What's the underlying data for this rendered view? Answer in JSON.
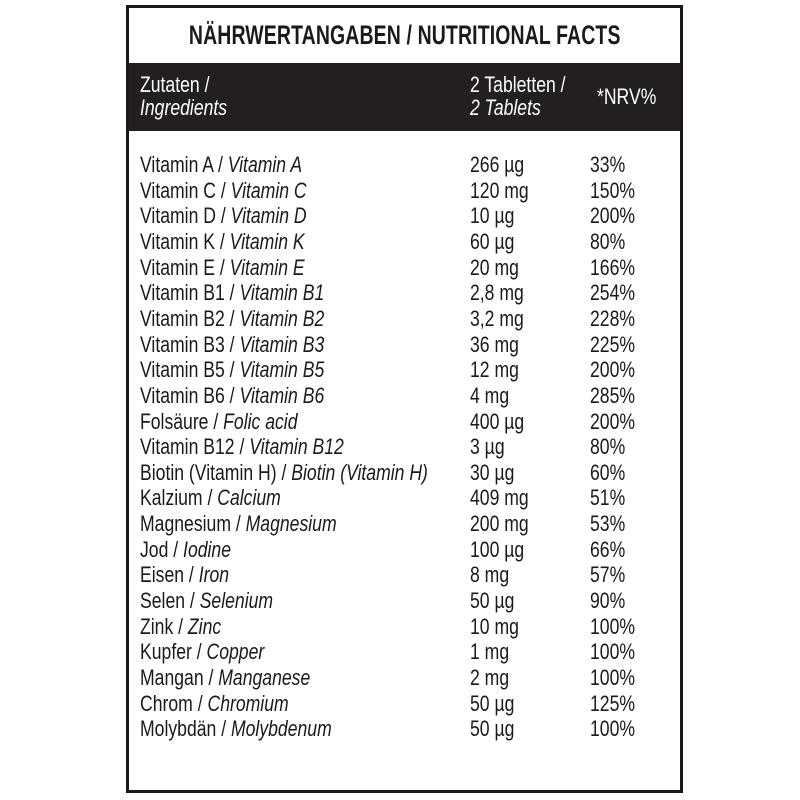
{
  "title": "NÄHRWERTANGABEN / NUTRITIONAL FACTS",
  "header": {
    "ingredients_de": "Zutaten /",
    "ingredients_en": "Ingredients",
    "amount_de": "2 Tabletten /",
    "amount_en": "2 Tablets",
    "nrv": "*NRV%"
  },
  "rows": [
    {
      "de": "Vitamin A / ",
      "en": "Vitamin A",
      "amount": "266 µg",
      "nrv": "33%"
    },
    {
      "de": "Vitamin C /  ",
      "en": "Vitamin C",
      "amount": "120 mg",
      "nrv": "150%"
    },
    {
      "de": "Vitamin D / ",
      "en": "Vitamin D",
      "amount": "10 µg",
      "nrv": "200%"
    },
    {
      "de": "Vitamin K / ",
      "en": "Vitamin K",
      "amount": "60 µg",
      "nrv": "80%"
    },
    {
      "de": "Vitamin E / ",
      "en": "Vitamin E",
      "amount": "20 mg",
      "nrv": "166%"
    },
    {
      "de": "Vitamin B1 / ",
      "en": "Vitamin B1",
      "amount": "2,8 mg",
      "nrv": "254%"
    },
    {
      "de": "Vitamin B2 / ",
      "en": "Vitamin B2",
      "amount": "3,2 mg",
      "nrv": "228%"
    },
    {
      "de": "Vitamin B3 / ",
      "en": "Vitamin B3",
      "amount": "36 mg",
      "nrv": "225%"
    },
    {
      "de": "Vitamin B5 / ",
      "en": "Vitamin B5",
      "amount": "12 mg",
      "nrv": "200%"
    },
    {
      "de": "Vitamin B6 / ",
      "en": "Vitamin B6",
      "amount": "4 mg",
      "nrv": "285%"
    },
    {
      "de": "Folsäure / ",
      "en": "Folic acid",
      "amount": "400 µg",
      "nrv": "200%"
    },
    {
      "de": "Vitamin B12 / ",
      "en": "Vitamin B12",
      "amount": "3 µg",
      "nrv": "80%"
    },
    {
      "de": "Biotin (Vitamin H) / ",
      "en": "Biotin (Vitamin H)",
      "amount": "30 µg",
      "nrv": "60%"
    },
    {
      "de": "Kalzium / ",
      "en": "Calcium",
      "amount": "409 mg",
      "nrv": "51%"
    },
    {
      "de": "Magnesium / ",
      "en": "Magnesium",
      "amount": "200 mg",
      "nrv": "53%"
    },
    {
      "de": "Jod / ",
      "en": "Iodine",
      "amount": "100 µg",
      "nrv": "66%"
    },
    {
      "de": "Eisen / ",
      "en": "Iron",
      "amount": "8 mg",
      "nrv": "57%"
    },
    {
      "de": "Selen / ",
      "en": "Selenium",
      "amount": "50 µg",
      "nrv": "90%"
    },
    {
      "de": "Zink / ",
      "en": "Zinc",
      "amount": "10 mg",
      "nrv": "100%"
    },
    {
      "de": "Kupfer / ",
      "en": "Copper",
      "amount": "1 mg",
      "nrv": "100%"
    },
    {
      "de": "Mangan / ",
      "en": "Manganese",
      "amount": "2 mg",
      "nrv": "100%"
    },
    {
      "de": "Chrom / ",
      "en": "Chromium",
      "amount": "50 µg",
      "nrv": "125%"
    },
    {
      "de": "Molybdän / ",
      "en": "Molybdenum",
      "amount": "50 µg",
      "nrv": "100%"
    }
  ]
}
